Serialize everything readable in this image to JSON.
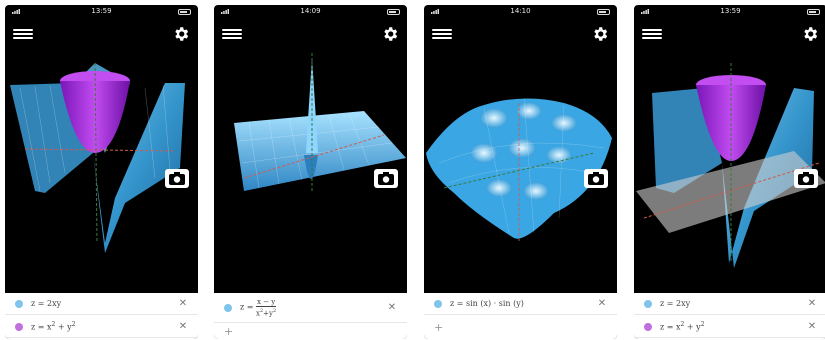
{
  "screens": [
    {
      "time": "13:59",
      "equations": [
        {
          "lhs": "z",
          "eq": "=",
          "rhs": "2xy",
          "color": "#7fc4ec"
        },
        {
          "lhs": "z",
          "eq": "=",
          "rhs_base1": "x",
          "sup1": "2",
          "plus": "+",
          "rhs_base2": "y",
          "sup2": "2",
          "color": "#c06fdf"
        }
      ]
    },
    {
      "time": "14:09",
      "equations": [
        {
          "lhs": "z",
          "eq": "=",
          "num": "x − y",
          "den_base1": "x",
          "den_sup1": "2",
          "den_plus": "+",
          "den_base2": "y",
          "den_sup2": "2",
          "color": "#7fc4ec"
        }
      ],
      "add_label": "+"
    },
    {
      "time": "14:10",
      "equations": [
        {
          "lhs": "z",
          "eq": "=",
          "rhs": "sin (x) · sin (y)",
          "color": "#7fc4ec"
        }
      ],
      "add_label": "+"
    },
    {
      "time": "13:59",
      "equations": [
        {
          "lhs": "z",
          "eq": "=",
          "rhs": "2xy",
          "color": "#7fc4ec"
        },
        {
          "lhs": "z",
          "eq": "=",
          "rhs_base1": "x",
          "sup1": "2",
          "plus": "+",
          "rhs_base2": "y",
          "sup2": "2",
          "color": "#c06fdf"
        }
      ]
    }
  ],
  "icons": {
    "menu": "hamburger-menu-icon",
    "settings": "gear-icon",
    "camera": "camera-icon",
    "delete": "close-icon",
    "add": "plus-icon"
  },
  "colors": {
    "surface_blue": "#4fb3e8",
    "surface_purple": "#a024d8",
    "plane_gray": "#c8c8c8"
  },
  "delete_label": "✕"
}
